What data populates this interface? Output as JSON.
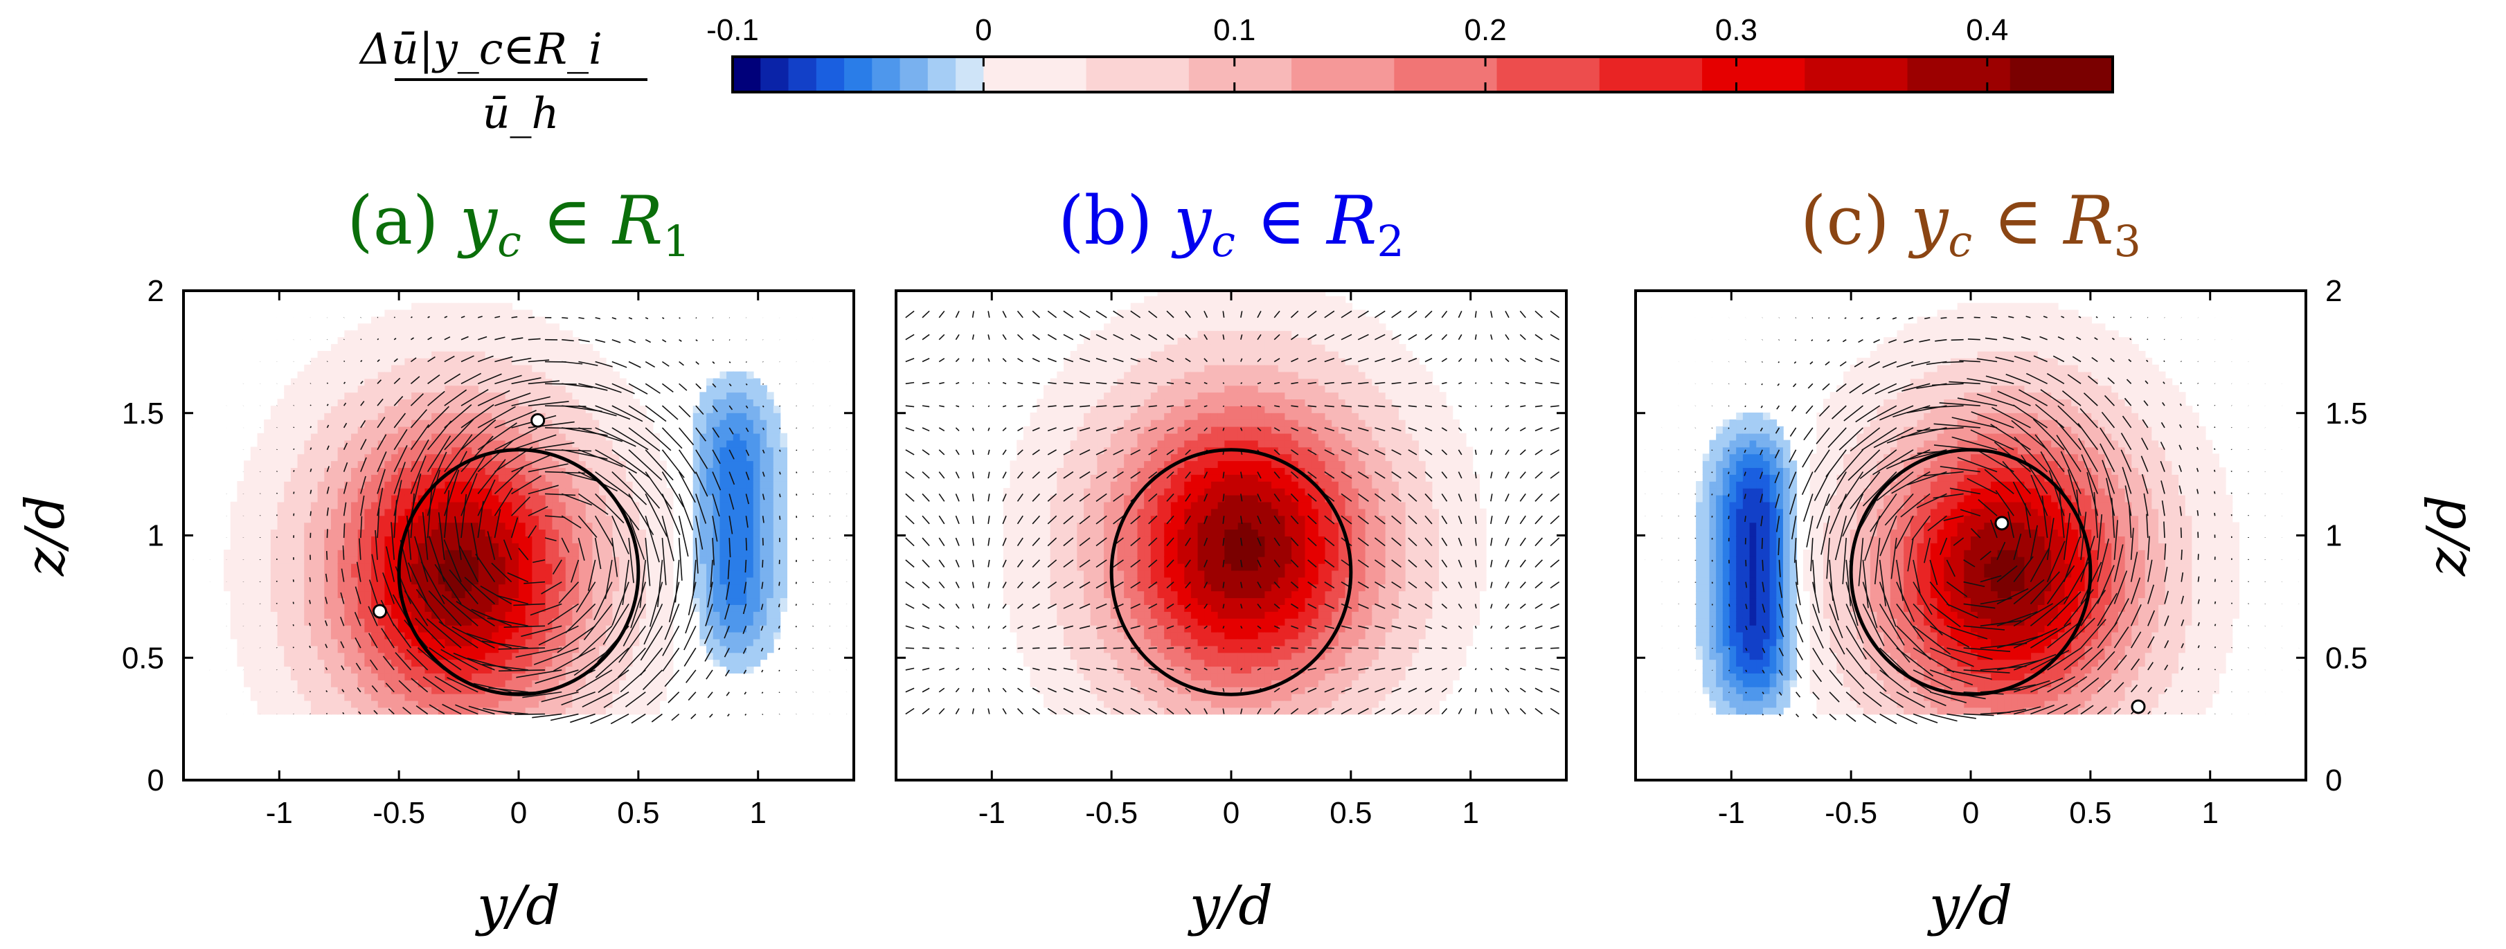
{
  "colorbar": {
    "label_numerator": "Δū|y_c∈R_i",
    "label_denominator": "ū_h",
    "ticks": [
      "-0.1",
      "0",
      "0.1",
      "0.2",
      "0.3",
      "0.4"
    ],
    "range": [
      -0.1,
      0.45
    ],
    "neg_colors": [
      "#00007a",
      "#0a23a8",
      "#1240c8",
      "#1a5fe0",
      "#2a7de8",
      "#4e97ec",
      "#79b1ef",
      "#a5cdf5",
      "#cfe4f8"
    ],
    "pos_colors": [
      "#fdecec",
      "#fbd4d4",
      "#f8b8b8",
      "#f59898",
      "#f17575",
      "#ed4d4d",
      "#e92424",
      "#e50000",
      "#c40000",
      "#9c0000",
      "#7a0000"
    ]
  },
  "axes": {
    "xlabel": "y/d",
    "ylabel": "z/d",
    "xticks": [
      "-1",
      "-0.5",
      "0",
      "0.5",
      "1"
    ],
    "yticks": [
      "0",
      "0.5",
      "1",
      "1.5",
      "2"
    ]
  },
  "chart_data": [
    {
      "type": "heatmap",
      "title_prefix": "(a) ",
      "title_var": "y",
      "title_sub": "c",
      "title_rel": " ∈ ",
      "title_set": "R",
      "title_set_sub": "1",
      "title_color": "#0a6e0a",
      "xlim": [
        -1.4,
        1.4
      ],
      "ylim": [
        0,
        2
      ],
      "data_floor_z": 0.27,
      "rotor": {
        "center": [
          0.0,
          0.85
        ],
        "radius": 0.5
      },
      "markers": [
        [
          0.08,
          1.47
        ],
        [
          -0.58,
          0.69
        ]
      ],
      "positive_blob": {
        "center": [
          -0.25,
          0.85
        ],
        "peak": 0.42,
        "sigma": [
          0.48,
          0.55
        ]
      },
      "negative_blob": {
        "center": [
          0.9,
          1.05
        ],
        "peak": -0.055,
        "sigma": [
          0.17,
          0.55
        ]
      },
      "swirl": {
        "center": [
          0.1,
          0.95
        ],
        "sense": -1
      }
    },
    {
      "type": "heatmap",
      "title_prefix": "(b) ",
      "title_var": "y",
      "title_sub": "c",
      "title_rel": " ∈ ",
      "title_set": "R",
      "title_set_sub": "2",
      "title_color": "#0000ee",
      "xlim": [
        -1.4,
        1.4
      ],
      "ylim": [
        0,
        2
      ],
      "data_floor_z": 0.27,
      "rotor": {
        "center": [
          0.0,
          0.85
        ],
        "radius": 0.5
      },
      "markers": [],
      "positive_blob": {
        "center": [
          0.05,
          0.95
        ],
        "peak": 0.42,
        "sigma": [
          0.5,
          0.55
        ]
      },
      "negative_blob": null,
      "swirl": {
        "center": [
          0.0,
          0.9
        ],
        "sense": 0
      }
    },
    {
      "type": "heatmap",
      "title_prefix": "(c) ",
      "title_var": "y",
      "title_sub": "c",
      "title_rel": " ∈ ",
      "title_set": "R",
      "title_set_sub": "3",
      "title_color": "#8b4513",
      "xlim": [
        -1.4,
        1.4
      ],
      "ylim": [
        0,
        2
      ],
      "data_floor_z": 0.27,
      "rotor": {
        "center": [
          0.0,
          0.85
        ],
        "radius": 0.5
      },
      "markers": [
        [
          0.13,
          1.05
        ],
        [
          0.7,
          0.3
        ]
      ],
      "positive_blob": {
        "center": [
          0.15,
          0.85
        ],
        "peak": 0.42,
        "sigma": [
          0.48,
          0.55
        ]
      },
      "negative_blob": {
        "center": [
          -0.9,
          0.85
        ],
        "peak": -0.085,
        "sigma": [
          0.17,
          0.55
        ]
      },
      "swirl": {
        "center": [
          0.0,
          0.95
        ],
        "sense": 1
      }
    }
  ]
}
